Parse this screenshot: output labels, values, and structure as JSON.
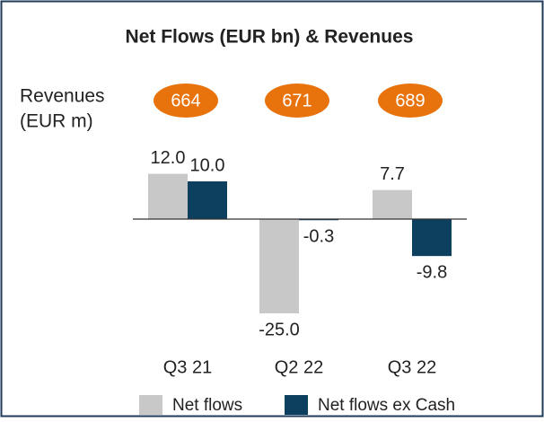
{
  "chart_data": {
    "type": "bar",
    "title": "Net Flows (EUR bn) & Revenues",
    "categories": [
      "Q3 21",
      "Q2 22",
      "Q3 22"
    ],
    "series": [
      {
        "name": "Net flows",
        "color": "#c8c8c8",
        "values": [
          12.0,
          -25.0,
          7.7
        ],
        "value_labels": [
          "12.0",
          "-25.0",
          "7.7"
        ]
      },
      {
        "name": "Net flows ex Cash",
        "color": "#0d3f5f",
        "values": [
          10.0,
          -0.3,
          -9.8
        ],
        "value_labels": [
          "10.0",
          "-0.3",
          "-9.8"
        ]
      }
    ],
    "revenues": {
      "label": [
        "Revenues",
        "(EUR m)"
      ],
      "color": "#e8730c",
      "values": [
        664,
        671,
        689
      ]
    }
  }
}
